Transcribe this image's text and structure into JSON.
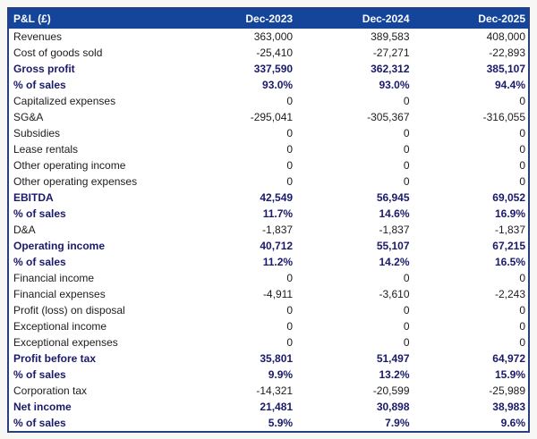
{
  "chart_data": {
    "type": "table",
    "title": "P&L (£)",
    "currency": "£",
    "columns": [
      "Dec-2023",
      "Dec-2024",
      "Dec-2025"
    ],
    "rows": [
      {
        "label": "Revenues",
        "values": [
          "363,000",
          "389,583",
          "408,000"
        ],
        "emphasis": false
      },
      {
        "label": "Cost of goods sold",
        "values": [
          "-25,410",
          "-27,271",
          "-22,893"
        ],
        "emphasis": false
      },
      {
        "label": "Gross profit",
        "values": [
          "337,590",
          "362,312",
          "385,107"
        ],
        "emphasis": true
      },
      {
        "label": "% of sales",
        "values": [
          "93.0%",
          "93.0%",
          "94.4%"
        ],
        "emphasis": true
      },
      {
        "label": "Capitalized expenses",
        "values": [
          "0",
          "0",
          "0"
        ],
        "emphasis": false
      },
      {
        "label": "SG&A",
        "values": [
          "-295,041",
          "-305,367",
          "-316,055"
        ],
        "emphasis": false
      },
      {
        "label": "Subsidies",
        "values": [
          "0",
          "0",
          "0"
        ],
        "emphasis": false
      },
      {
        "label": "Lease rentals",
        "values": [
          "0",
          "0",
          "0"
        ],
        "emphasis": false
      },
      {
        "label": "Other operating income",
        "values": [
          "0",
          "0",
          "0"
        ],
        "emphasis": false
      },
      {
        "label": "Other operating expenses",
        "values": [
          "0",
          "0",
          "0"
        ],
        "emphasis": false
      },
      {
        "label": "EBITDA",
        "values": [
          "42,549",
          "56,945",
          "69,052"
        ],
        "emphasis": true
      },
      {
        "label": "% of sales",
        "values": [
          "11.7%",
          "14.6%",
          "16.9%"
        ],
        "emphasis": true
      },
      {
        "label": "D&A",
        "values": [
          "-1,837",
          "-1,837",
          "-1,837"
        ],
        "emphasis": false
      },
      {
        "label": "Operating income",
        "values": [
          "40,712",
          "55,107",
          "67,215"
        ],
        "emphasis": true
      },
      {
        "label": "% of sales",
        "values": [
          "11.2%",
          "14.2%",
          "16.5%"
        ],
        "emphasis": true
      },
      {
        "label": "Financial income",
        "values": [
          "0",
          "0",
          "0"
        ],
        "emphasis": false
      },
      {
        "label": "Financial expenses",
        "values": [
          "-4,911",
          "-3,610",
          "-2,243"
        ],
        "emphasis": false
      },
      {
        "label": "Profit (loss) on disposal",
        "values": [
          "0",
          "0",
          "0"
        ],
        "emphasis": false
      },
      {
        "label": "Exceptional income",
        "values": [
          "0",
          "0",
          "0"
        ],
        "emphasis": false
      },
      {
        "label": "Exceptional expenses",
        "values": [
          "0",
          "0",
          "0"
        ],
        "emphasis": false
      },
      {
        "label": "Profit before tax",
        "values": [
          "35,801",
          "51,497",
          "64,972"
        ],
        "emphasis": true
      },
      {
        "label": "% of sales",
        "values": [
          "9.9%",
          "13.2%",
          "15.9%"
        ],
        "emphasis": true
      },
      {
        "label": "Corporation tax",
        "values": [
          "-14,321",
          "-20,599",
          "-25,989"
        ],
        "emphasis": false
      },
      {
        "label": "Net income",
        "values": [
          "21,481",
          "30,898",
          "38,983"
        ],
        "emphasis": true
      },
      {
        "label": "% of sales",
        "values": [
          "5.9%",
          "7.9%",
          "9.6%"
        ],
        "emphasis": true
      }
    ]
  },
  "colors": {
    "header_bg": "#14459b",
    "header_text": "#ffffff",
    "emphasis_text": "#1a1a6b",
    "body_text": "#1c1c1c",
    "border": "#28407f",
    "row_bg": "#ffffff",
    "page_bg": "#f7f7f5"
  }
}
